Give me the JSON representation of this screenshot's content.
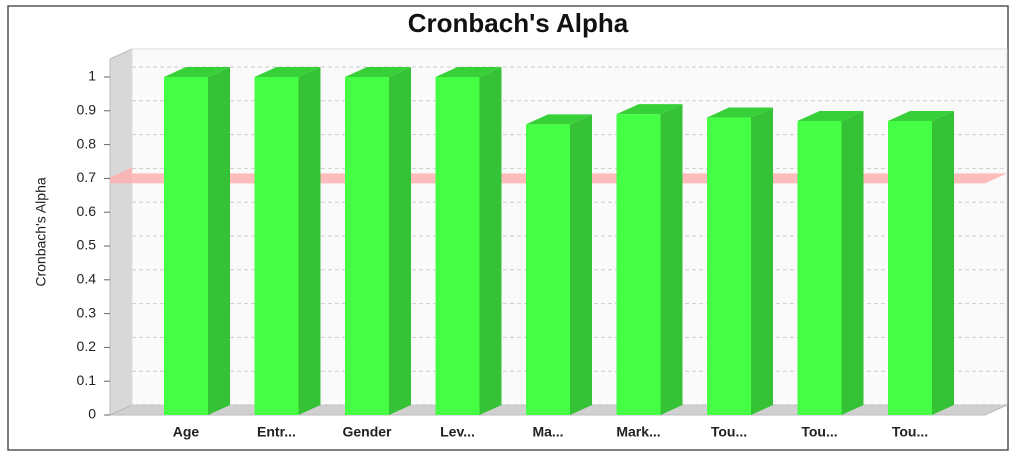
{
  "chart_data": {
    "type": "bar3d",
    "title": "Cronbach's Alpha",
    "y_label": "Cronbach's Alpha",
    "categories": [
      "Age",
      "Entr...",
      "Gender",
      "Lev...",
      "Ma...",
      "Mark...",
      "Tou...",
      "Tou...",
      "Tou..."
    ],
    "values": [
      1,
      1,
      1,
      1,
      0.86,
      0.89,
      0.88,
      0.87,
      0.87
    ],
    "color": "#44ff44",
    "ylim": [
      0,
      1
    ],
    "yticks": [
      0,
      0.1,
      0.2,
      0.3,
      0.4,
      0.5,
      0.6,
      0.7,
      0.8,
      0.9,
      1
    ],
    "reference_line": 0.7,
    "reference_color": "#ffb0b0",
    "grid": true
  }
}
